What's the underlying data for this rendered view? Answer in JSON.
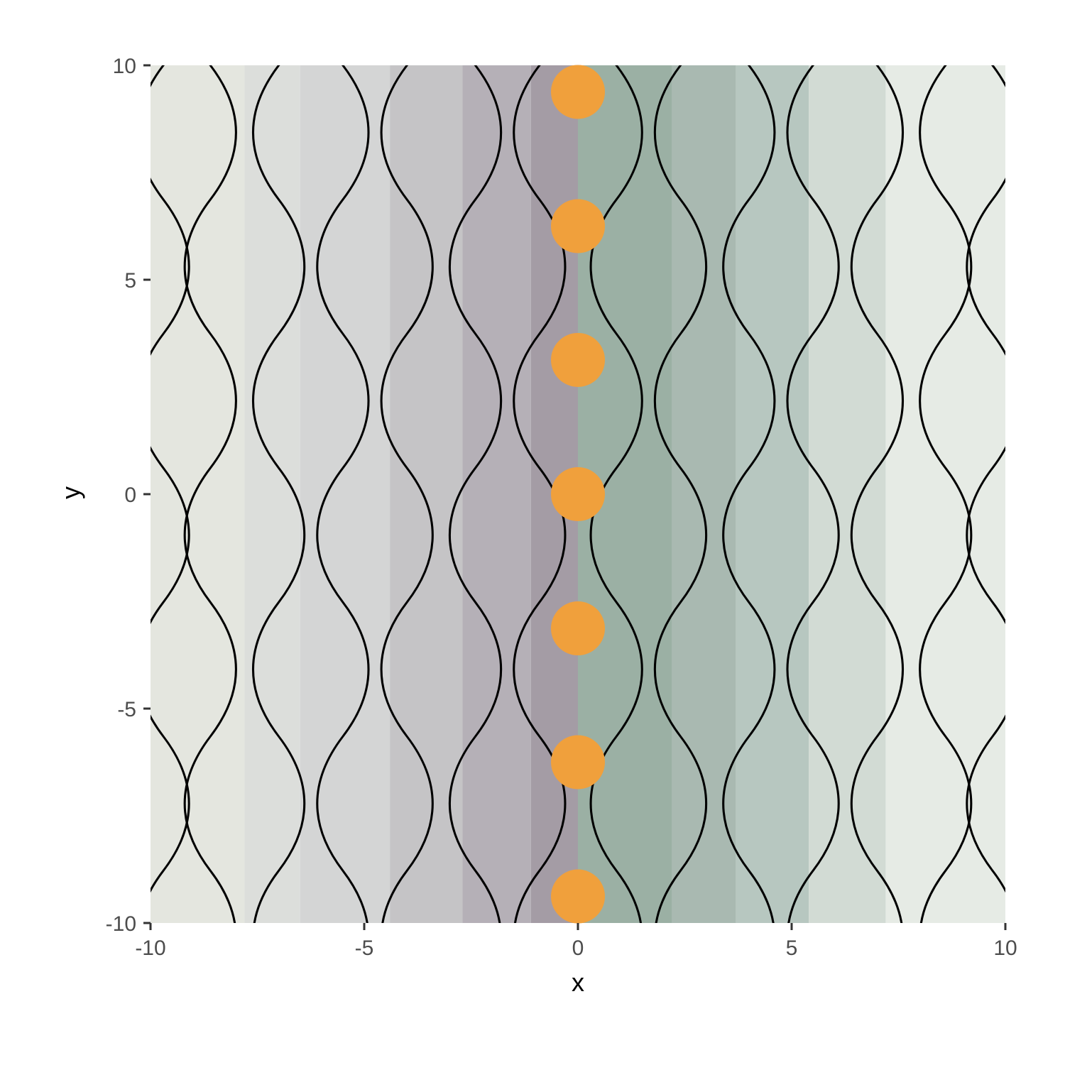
{
  "chart_data": {
    "type": "scatter",
    "title": "",
    "xlabel": "x",
    "ylabel": "y",
    "xlim": [
      -10,
      10
    ],
    "ylim": [
      -10,
      10
    ],
    "x_ticks": [
      -10,
      -5,
      0,
      5,
      10
    ],
    "y_ticks": [
      -10,
      -5,
      0,
      5,
      10
    ],
    "x_tick_labels": [
      "-10",
      "-5",
      "0",
      "5",
      "10"
    ],
    "y_tick_labels": [
      "-10",
      "-5",
      "0",
      "5",
      "10"
    ],
    "grid": false,
    "points": {
      "x": [
        0,
        0,
        0,
        0,
        0,
        0,
        0
      ],
      "y": [
        -9.38,
        -6.25,
        -3.13,
        0,
        3.13,
        6.25,
        9.38
      ],
      "color": "#f0a03c"
    },
    "background_bands": [
      {
        "x_min": -10.0,
        "x_max": -7.8,
        "color": "#e4e6df"
      },
      {
        "x_min": -7.8,
        "x_max": -6.5,
        "color": "#dcdedb"
      },
      {
        "x_min": -6.5,
        "x_max": -4.4,
        "color": "#d4d5d5"
      },
      {
        "x_min": -4.4,
        "x_max": -2.7,
        "color": "#c5c4c6"
      },
      {
        "x_min": -2.7,
        "x_max": -1.1,
        "color": "#b5b0b7"
      },
      {
        "x_min": -1.1,
        "x_max": 0.0,
        "color": "#a49ca5"
      },
      {
        "x_min": 0.0,
        "x_max": 2.2,
        "color": "#9bb0a4"
      },
      {
        "x_min": 2.2,
        "x_max": 3.7,
        "color": "#a9b9b1"
      },
      {
        "x_min": 3.7,
        "x_max": 5.4,
        "color": "#b7c7c0"
      },
      {
        "x_min": 5.4,
        "x_max": 7.2,
        "color": "#d2dbd4"
      },
      {
        "x_min": 7.2,
        "x_max": 10.0,
        "color": "#e6ebe5"
      }
    ],
    "wave_lines": {
      "color": "#000000",
      "columns_x": [
        -9.7,
        -8.6,
        -7.0,
        -5.5,
        -4.0,
        -2.4,
        -0.9,
        0.9,
        2.4,
        4.0,
        5.5,
        7.0,
        8.6,
        9.7
      ],
      "amplitude": 0.6,
      "half_period": 3.13
    }
  }
}
